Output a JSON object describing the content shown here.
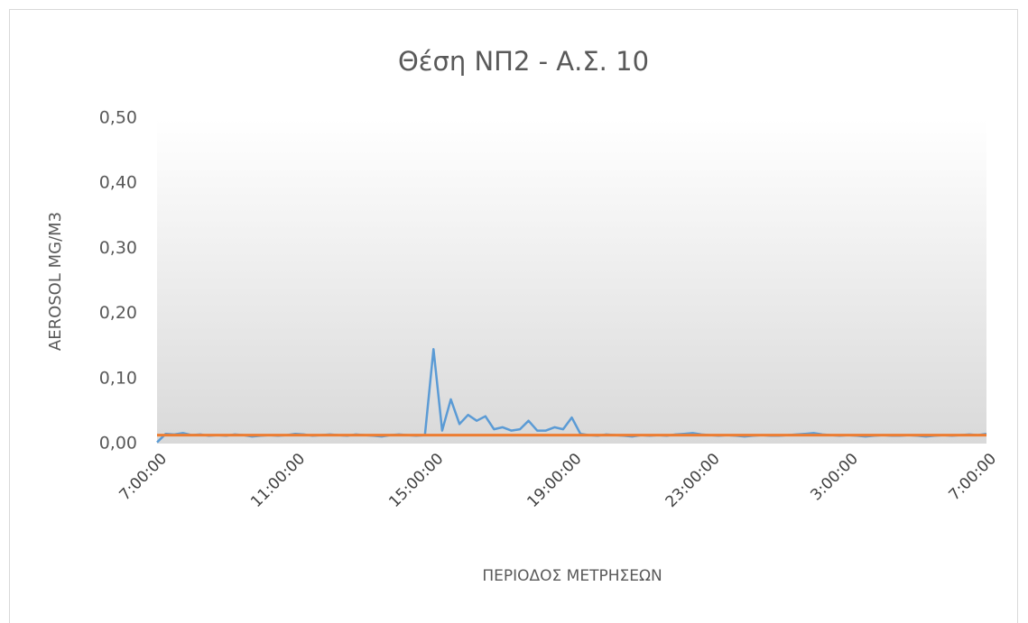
{
  "chart_data": {
    "type": "line",
    "title": "Θέση ΝΠ2 - Α.Σ. 10",
    "x_label": "ΠΕΡΙΟΔΟΣ ΜΕΤΡΗΣΕΩΝ",
    "y_label": "AEROSOL MG/M3",
    "x": [
      0,
      0.25,
      0.5,
      0.75,
      1,
      1.25,
      1.5,
      1.75,
      2,
      2.25,
      2.5,
      2.75,
      3,
      3.25,
      3.5,
      3.75,
      4,
      4.25,
      4.5,
      4.75,
      5,
      5.25,
      5.5,
      5.75,
      6,
      6.25,
      6.5,
      6.75,
      7,
      7.25,
      7.5,
      7.75,
      8,
      8.25,
      8.5,
      8.75,
      9,
      9.25,
      9.5,
      9.75,
      10,
      10.25,
      10.5,
      10.75,
      11,
      11.25,
      11.5,
      11.75,
      12,
      12.25,
      12.5,
      12.75,
      13,
      13.25,
      13.5,
      13.75,
      14,
      14.25,
      14.5,
      14.75,
      15,
      15.25,
      15.5,
      15.75,
      16,
      16.25,
      16.5,
      16.75,
      17,
      17.25,
      17.5,
      17.75,
      18,
      18.25,
      18.5,
      18.75,
      19,
      19.25,
      19.5,
      19.75,
      20,
      20.25,
      20.5,
      20.75,
      21,
      21.25,
      21.5,
      21.75,
      22,
      22.25,
      22.5,
      22.75,
      23,
      23.25,
      23.5,
      23.75,
      24
    ],
    "series": [
      {
        "color": "#5b9bd5",
        "values": [
          0.002,
          0.015,
          0.014,
          0.016,
          0.013,
          0.014,
          0.012,
          0.013,
          0.012,
          0.014,
          0.013,
          0.011,
          0.012,
          0.013,
          0.012,
          0.013,
          0.015,
          0.014,
          0.012,
          0.013,
          0.014,
          0.013,
          0.012,
          0.014,
          0.013,
          0.012,
          0.011,
          0.013,
          0.014,
          0.013,
          0.012,
          0.013,
          0.145,
          0.02,
          0.068,
          0.03,
          0.044,
          0.035,
          0.042,
          0.022,
          0.025,
          0.02,
          0.022,
          0.035,
          0.02,
          0.02,
          0.025,
          0.022,
          0.04,
          0.015,
          0.013,
          0.012,
          0.014,
          0.013,
          0.012,
          0.011,
          0.013,
          0.012,
          0.013,
          0.012,
          0.014,
          0.015,
          0.016,
          0.014,
          0.013,
          0.012,
          0.013,
          0.012,
          0.011,
          0.012,
          0.013,
          0.012,
          0.012,
          0.013,
          0.014,
          0.015,
          0.016,
          0.014,
          0.013,
          0.012,
          0.013,
          0.012,
          0.011,
          0.012,
          0.013,
          0.012,
          0.012,
          0.013,
          0.012,
          0.011,
          0.012,
          0.013,
          0.012,
          0.013,
          0.014,
          0.013,
          0.015
        ]
      },
      {
        "color": "#ed7d31",
        "values": [
          0.013,
          0.013,
          0.013,
          0.013,
          0.013,
          0.013,
          0.013,
          0.013,
          0.013,
          0.013,
          0.013,
          0.013,
          0.013,
          0.013,
          0.013,
          0.013,
          0.013,
          0.013,
          0.013,
          0.013,
          0.013,
          0.013,
          0.013,
          0.013,
          0.013,
          0.013,
          0.013,
          0.013,
          0.013,
          0.013,
          0.013,
          0.013,
          0.013,
          0.013,
          0.013,
          0.013,
          0.013,
          0.013,
          0.013,
          0.013,
          0.013,
          0.013,
          0.013,
          0.013,
          0.013,
          0.013,
          0.013,
          0.013,
          0.013,
          0.013,
          0.013,
          0.013,
          0.013,
          0.013,
          0.013,
          0.013,
          0.013,
          0.013,
          0.013,
          0.013,
          0.013,
          0.013,
          0.013,
          0.013,
          0.013,
          0.013,
          0.013,
          0.013,
          0.013,
          0.013,
          0.013,
          0.013,
          0.013,
          0.013,
          0.013,
          0.013,
          0.013,
          0.013,
          0.013,
          0.013,
          0.013,
          0.013,
          0.013,
          0.013,
          0.013,
          0.013,
          0.013,
          0.013,
          0.013,
          0.013,
          0.013,
          0.013,
          0.013,
          0.013,
          0.013,
          0.013,
          0.013
        ]
      }
    ],
    "xlim": [
      0,
      24
    ],
    "xticks": [
      {
        "value": 0,
        "label": "7:00:00"
      },
      {
        "value": 4,
        "label": "11:00:00"
      },
      {
        "value": 8,
        "label": "15:00:00"
      },
      {
        "value": 12,
        "label": "19:00:00"
      },
      {
        "value": 16,
        "label": "23:00:00"
      },
      {
        "value": 20,
        "label": "3:00:00"
      },
      {
        "value": 24,
        "label": "7:00:00"
      }
    ],
    "ylim": [
      0,
      0.5
    ],
    "yticks": [
      {
        "value": 0,
        "label": "0,00"
      },
      {
        "value": 0.1,
        "label": "0,10"
      },
      {
        "value": 0.2,
        "label": "0,20"
      },
      {
        "value": 0.3,
        "label": "0,30"
      },
      {
        "value": 0.4,
        "label": "0,40"
      },
      {
        "value": 0.5,
        "label": "0,50"
      }
    ]
  }
}
